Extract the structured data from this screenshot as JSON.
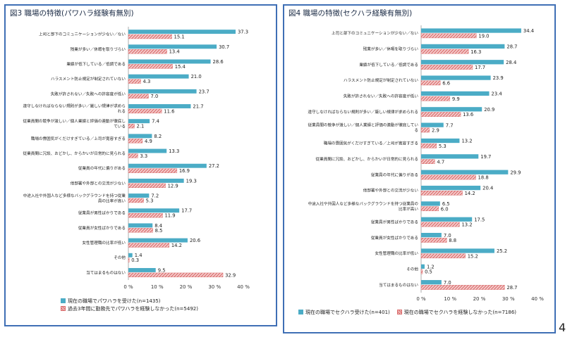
{
  "page_number": "4",
  "colors": {
    "border": "#3f6fb5",
    "series1": "#4bacc6",
    "series2": "#e8a0a0",
    "series2_stroke": "#d96a6a"
  },
  "chart_data": [
    {
      "type": "bar",
      "title": "図3 職場の特徴(パワハラ経験有無別)",
      "orientation": "horizontal",
      "xlim": [
        0,
        40
      ],
      "x_ticks": [
        "0 %",
        "10 %",
        "20 %",
        "30 %",
        "40 %"
      ],
      "categories": [
        "上司と部下のコミュニケーションが少ない／ない",
        "残業が多い／休暇を取りづらい",
        "業績が低下している／低調である",
        "ハラスメント防止規定が制定されていない",
        "失敗が許されない／失敗への許容度が低い",
        "違守しなければならない規則が多い／厳しい規律が求められる",
        "従業員間の競争が激しい／個人業績と評価の連動が徹底している",
        "職場の雰囲気がくだけすぎている／上司が寛容すぎる",
        "従業員間に冗談、おどかし、からかいが日常的に見られる",
        "従業員の年代に偏りがある",
        "他部署や外部との交流が少ない",
        "中途入社や外国人など多様なバックグラウンドを持つ従業員の比率が高い",
        "従業員が男性ばかりである",
        "従業員が女性ばかりである",
        "女性管理職の比率が低い",
        "その他",
        "当てはまるものはない"
      ],
      "series": [
        {
          "name": "現在の職場でパワハラを受けた(n=1435)",
          "values": [
            37.3,
            30.7,
            28.6,
            21.0,
            23.7,
            21.7,
            7.4,
            8.2,
            13.3,
            27.2,
            19.3,
            7.2,
            17.7,
            8.4,
            20.6,
            1.4,
            9.5
          ]
        },
        {
          "name": "過去3年間に勤務先でパワハラを経験しなかった(n=5492)",
          "values": [
            15.1,
            13.4,
            15.4,
            4.3,
            7.0,
            11.6,
            2.1,
            4.9,
            3.3,
            16.9,
            12.9,
            5.3,
            11.9,
            8.5,
            14.2,
            0.3,
            32.9
          ]
        }
      ]
    },
    {
      "type": "bar",
      "title": "図4 職場の特徴(セクハラ経験有無別)",
      "orientation": "horizontal",
      "xlim": [
        0,
        40
      ],
      "x_ticks": [
        "0 %",
        "10 %",
        "20 %",
        "30 %",
        "40 %"
      ],
      "categories": [
        "上司と部下のコミュニケーションが少ない／ない",
        "残業が多い／休暇を取りづらい",
        "業績が低下している／低調である",
        "ハラスメント防止規定が制定されていない",
        "失敗が許されない／失敗への許容度が低い",
        "違守しなければならない規則が多い／厳しい規律が求められる",
        "従業員間の競争が激しい／個人業績と評価の連動が徹底している",
        "職場の雰囲気がくだけすぎている／上司が寛容すぎる",
        "従業員間に冗談、おどかし、からかいが日常的に見られる",
        "従業員の年代に偏りがある",
        "他部署や外部との交流が少ない",
        "中途入社や外国人など多様なバックグラウンドを持つ従業員の比率が高い",
        "従業員が男性ばかりである",
        "従業員が女性ばかりである",
        "女性管理職の比率が低い",
        "その他",
        "当てはまるものはない"
      ],
      "series": [
        {
          "name": "現在の職場でセクハラ受けた(n=401)",
          "values": [
            34.4,
            28.7,
            28.4,
            23.9,
            23.4,
            20.9,
            7.7,
            13.2,
            19.7,
            29.9,
            20.4,
            6.5,
            17.5,
            7.0,
            25.2,
            1.2,
            7.0
          ]
        },
        {
          "name": "現在の職場でセクハラを経験しなかった(n=7186)",
          "values": [
            19.0,
            16.3,
            17.7,
            6.6,
            9.9,
            13.6,
            2.9,
            5.3,
            4.7,
            18.8,
            14.2,
            6.0,
            13.2,
            8.8,
            15.2,
            0.5,
            28.7
          ]
        }
      ]
    }
  ]
}
